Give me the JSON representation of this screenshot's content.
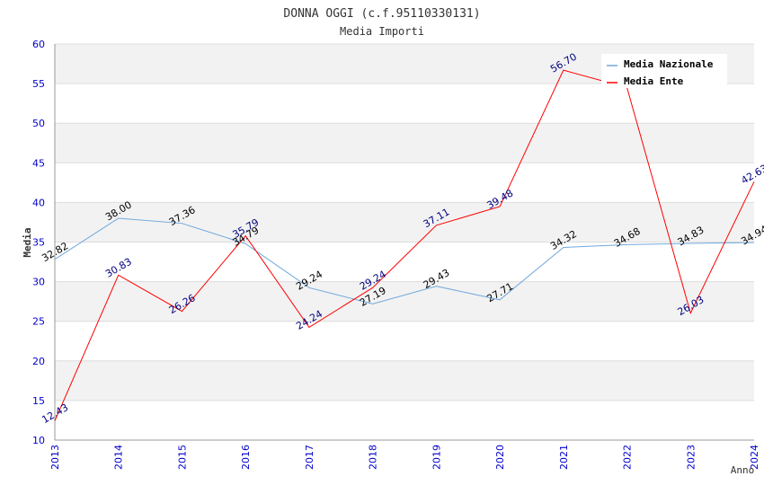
{
  "chart_data": {
    "type": "line",
    "title": "DONNA OGGI (c.f.95110330131)",
    "subtitle": "Media Importi",
    "xlabel": "Anno",
    "ylabel": "Media",
    "ylim": [
      10,
      60
    ],
    "yticks": [
      10,
      15,
      20,
      25,
      30,
      35,
      40,
      45,
      50,
      55,
      60
    ],
    "categories": [
      "2013",
      "2014",
      "2015",
      "2016",
      "2017",
      "2018",
      "2019",
      "2020",
      "2021",
      "2022",
      "2023",
      "2024"
    ],
    "legend_position": "top-right",
    "series": [
      {
        "name": "Media Nazionale",
        "color": "#6fa8dc",
        "label_color": "#000000",
        "values": [
          32.82,
          38.0,
          37.36,
          34.79,
          29.24,
          27.19,
          29.43,
          27.71,
          34.32,
          34.68,
          34.83,
          34.94
        ],
        "labels": [
          "32.82",
          "38.00",
          "37.36",
          "34.79",
          "29.24",
          "27.19",
          "29.43",
          "27.71",
          "34.32",
          "34.68",
          "34.83",
          "34.94"
        ]
      },
      {
        "name": "Media Ente",
        "color": "#ff0000",
        "label_color": "#000080",
        "values": [
          12.43,
          30.83,
          26.26,
          35.79,
          24.24,
          29.24,
          37.11,
          39.48,
          56.7,
          null,
          26.03,
          42.63
        ],
        "labels": [
          "12.43",
          "30.83",
          "26.26",
          "35.79",
          "24.24",
          "29.24",
          "37.11",
          "39.48",
          "56.70",
          null,
          "26.03",
          "42.63"
        ]
      }
    ],
    "ente_2022_visual_estimate": 54.5
  },
  "colors": {
    "tick_label": "#0000cc",
    "band": "#f2f2f2",
    "grid": "#dddddd",
    "axis": "#999999",
    "text": "#333333"
  }
}
